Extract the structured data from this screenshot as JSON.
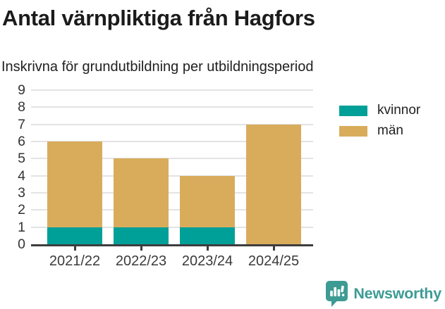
{
  "header": {
    "title": "Antal värnpliktiga från Hagfors",
    "subtitle": "Inskrivna för grundutbildning per utbildningsperiod"
  },
  "chart_data": {
    "type": "bar",
    "stacked": true,
    "categories": [
      "2021/22",
      "2022/23",
      "2023/24",
      "2024/25"
    ],
    "series": [
      {
        "name": "kvinnor",
        "color": "#00a098",
        "values": [
          1,
          1,
          1,
          0
        ]
      },
      {
        "name": "män",
        "color": "#d9ac5c",
        "values": [
          5,
          4,
          3,
          7
        ]
      }
    ],
    "totals": [
      6,
      5,
      4,
      7
    ],
    "title": "Antal värnpliktiga från Hagfors",
    "subtitle": "Inskrivna för grundutbildning per utbildningsperiod",
    "xlabel": "",
    "ylabel": "",
    "ylim": [
      0,
      9
    ],
    "ytick_step": 1,
    "grid": true,
    "legend_position": "right-top"
  },
  "colors": {
    "grid": "#e3e3e3",
    "axis": "#3d3d3d",
    "text": "#333333"
  },
  "footer": {
    "brand": "Newsworthy",
    "brand_color": "#3d9b94",
    "logo_icon": "bar-chart-speech-bubble-icon"
  }
}
